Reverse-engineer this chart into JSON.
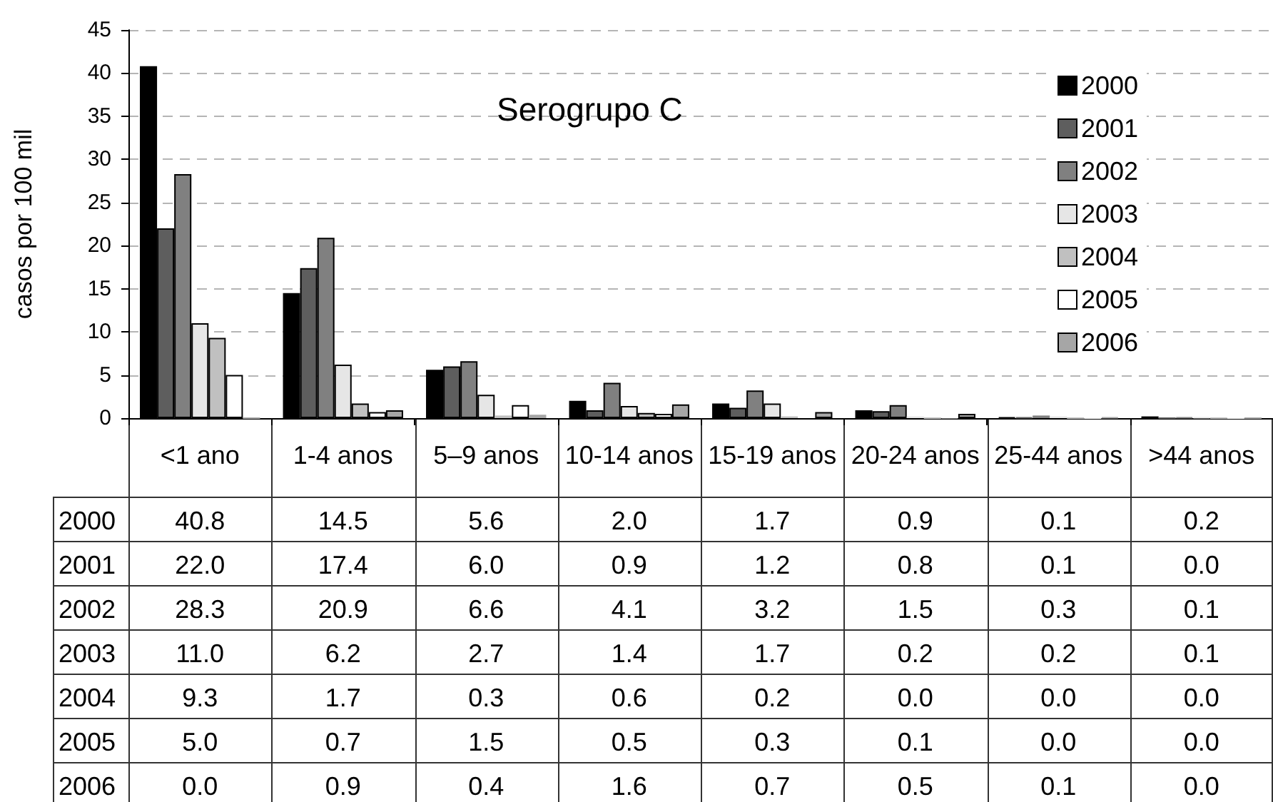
{
  "chart_data": {
    "type": "bar",
    "title": "Serogrupo C",
    "ylabel": "casos por 100 mil",
    "categories": [
      "<1 ano",
      "1-4 anos",
      "5–9 anos",
      "10-14 anos",
      "15-19 anos",
      "20-24 anos",
      "25-44 anos",
      ">44 anos"
    ],
    "series": [
      {
        "name": "2000",
        "color": "#000000",
        "values": [
          40.8,
          14.5,
          5.6,
          2.0,
          1.7,
          0.9,
          0.1,
          0.2
        ],
        "value_labels": [
          "40.8",
          "14.5",
          "5.6",
          "2.0",
          "1.7",
          "0.9",
          "0.1",
          "0.2"
        ]
      },
      {
        "name": "2001",
        "color": "#5e5e5e",
        "values": [
          22.0,
          17.4,
          6.0,
          0.9,
          1.2,
          0.8,
          0.1,
          0.0
        ],
        "value_labels": [
          "22.0",
          "17.4",
          "6.0",
          "0.9",
          "1.2",
          "0.8",
          "0.1",
          "0.0"
        ]
      },
      {
        "name": "2002",
        "color": "#808080",
        "values": [
          28.3,
          20.9,
          6.6,
          4.1,
          3.2,
          1.5,
          0.3,
          0.1
        ],
        "value_labels": [
          "28.3",
          "20.9",
          "6.6",
          "4.1",
          "3.2",
          "1.5",
          "0.3",
          "0.1"
        ]
      },
      {
        "name": "2003",
        "color": "#e6e6e6",
        "values": [
          11.0,
          6.2,
          2.7,
          1.4,
          1.7,
          0.2,
          0.2,
          0.1
        ],
        "value_labels": [
          "11.0",
          "6.2",
          "2.7",
          "1.4",
          "1.7",
          "0.2",
          "0.2",
          "0.1"
        ]
      },
      {
        "name": "2004",
        "color": "#c0c0c0",
        "values": [
          9.3,
          1.7,
          0.3,
          0.6,
          0.2,
          0.0,
          0.0,
          0.0
        ],
        "value_labels": [
          "9.3",
          "1.7",
          "0.3",
          "0.6",
          "0.2",
          "0.0",
          "0.0",
          "0.0"
        ]
      },
      {
        "name": "2005",
        "color": "#ffffff",
        "values": [
          5.0,
          0.7,
          1.5,
          0.5,
          0.3,
          0.1,
          0.0,
          0.0
        ],
        "value_labels": [
          "5.0",
          "0.7",
          "1.5",
          "0.5",
          "0.3",
          "0.1",
          "0.0",
          "0.0"
        ]
      },
      {
        "name": "2006",
        "color": "#a6a6a6",
        "values": [
          0.0,
          0.9,
          0.4,
          1.6,
          0.7,
          0.5,
          0.1,
          0.0
        ],
        "value_labels": [
          "0.0",
          "0.9",
          "0.4",
          "1.6",
          "0.7",
          "0.5",
          "0.1",
          "0.0"
        ]
      }
    ],
    "ylim": [
      0,
      45
    ],
    "yticks": [
      0,
      5,
      10,
      15,
      20,
      25,
      30,
      35,
      40,
      45
    ],
    "grid": "y",
    "legend": "top right"
  }
}
